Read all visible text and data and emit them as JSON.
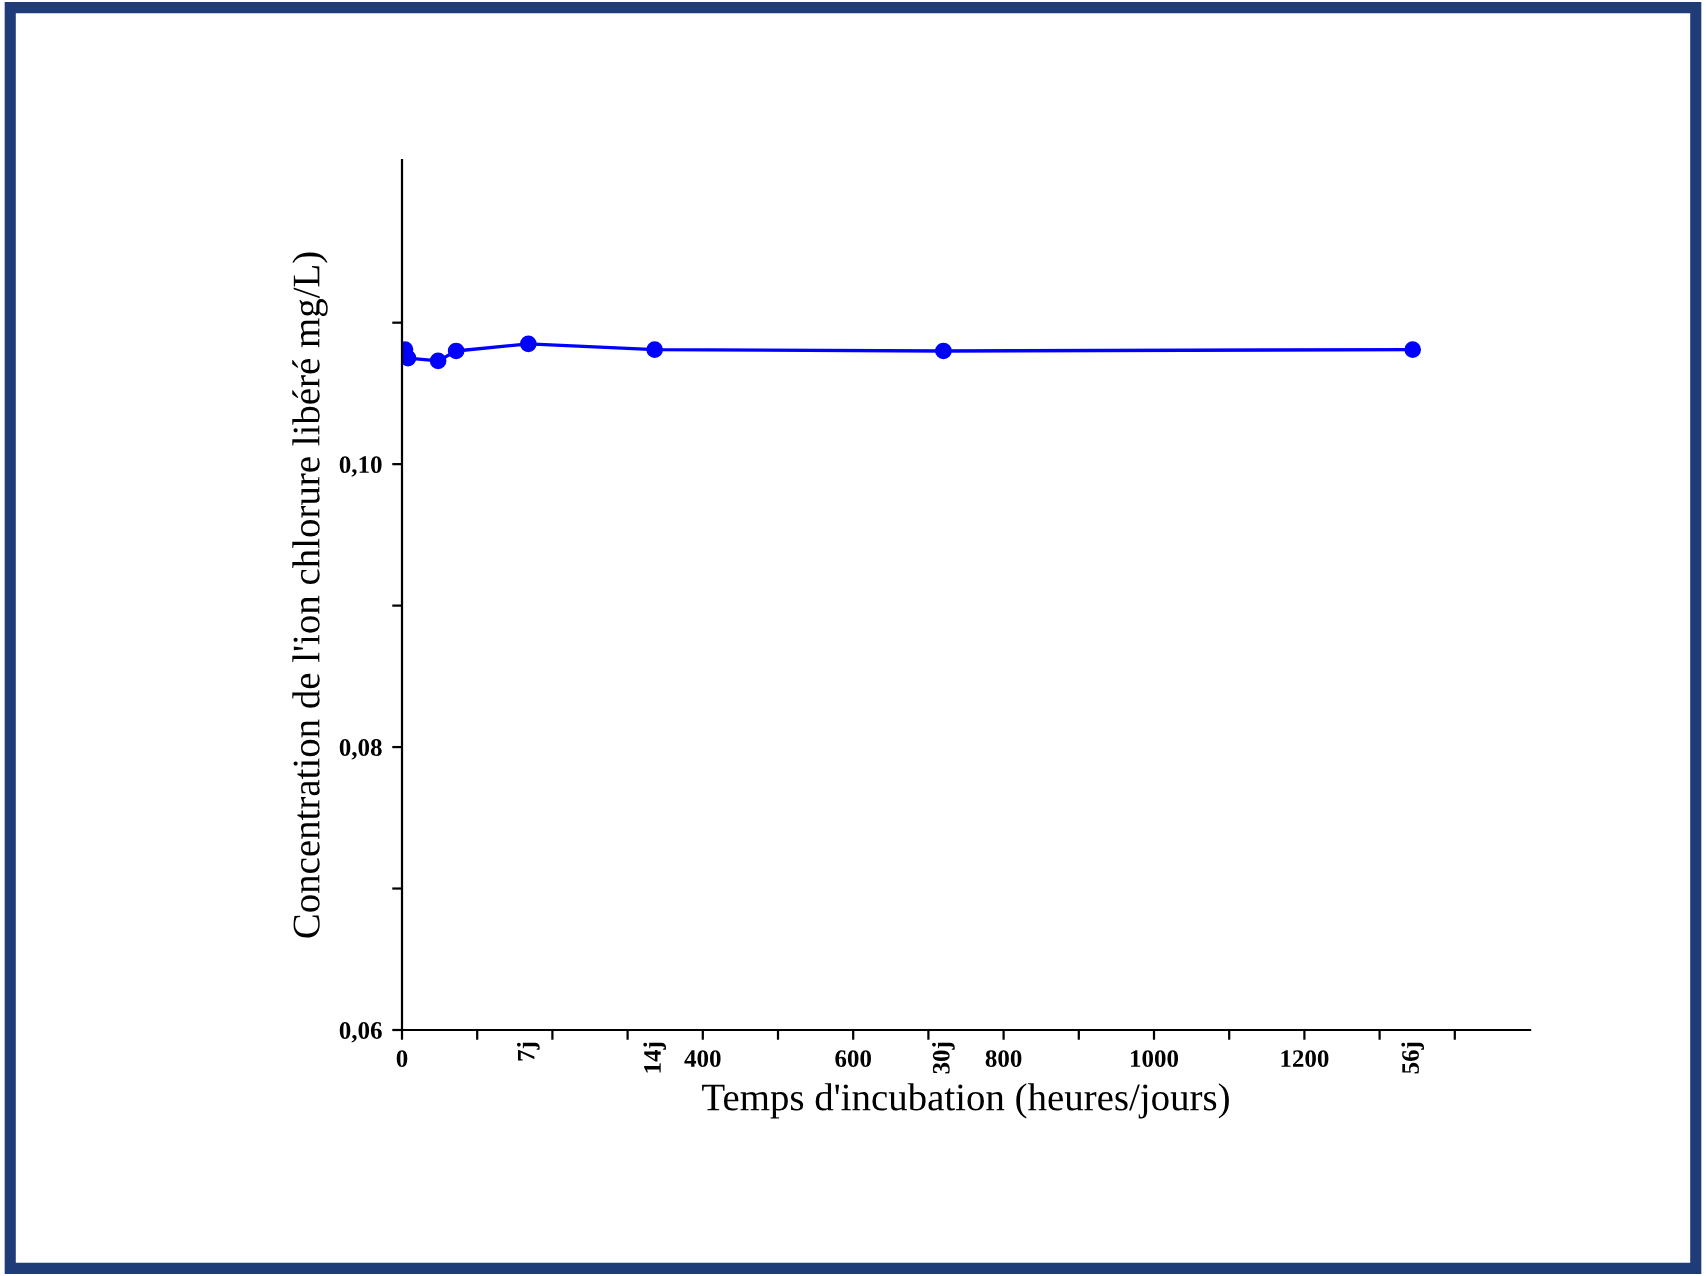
{
  "chart_data": {
    "type": "line",
    "xlabel": "Temps d'incubation (heures/jours)",
    "ylabel": "Concentration de l'ion chlorure libéré mg/L)",
    "x": [
      4,
      8,
      48,
      72,
      168,
      336,
      720,
      1344
    ],
    "series": [
      {
        "color": "#0000ff",
        "values": [
          0.1081,
          0.1075,
          0.1073,
          0.108,
          0.1085,
          0.1081,
          0.108,
          0.1081
        ]
      }
    ],
    "marker": "circle",
    "line_style": "solid",
    "grid": false,
    "legend": false,
    "xlim": [
      0,
      1500
    ],
    "ylim": [
      0.06,
      0.1215
    ],
    "xticks": [
      0,
      {
        "value": 100,
        "label": null
      },
      {
        "value": 200,
        "label": null
      },
      {
        "value": 300,
        "label": null
      },
      400,
      {
        "value": 500,
        "label": null
      },
      600,
      {
        "value": 700,
        "label": null
      },
      800,
      {
        "value": 900,
        "label": null
      },
      1000,
      {
        "value": 1100,
        "label": null
      },
      1200,
      {
        "value": 1300,
        "label": null
      },
      {
        "value": 1400,
        "label": null
      }
    ],
    "x2lim": [
      0,
      62.5
    ],
    "x2ticks": [
      {
        "value": 7,
        "label": "7j"
      },
      {
        "value": 14,
        "label": "14j"
      },
      {
        "value": 30,
        "label": "30j"
      },
      {
        "value": 56,
        "label": "56j"
      }
    ],
    "yticks": [
      {
        "value": 0.06,
        "label": "0,06"
      },
      {
        "value": 0.07,
        "label": null
      },
      {
        "value": 0.08,
        "label": "0,08"
      },
      {
        "value": 0.09,
        "label": null
      },
      {
        "value": 0.1,
        "label": "0,10"
      },
      {
        "value": 0.11,
        "label": null
      }
    ]
  }
}
